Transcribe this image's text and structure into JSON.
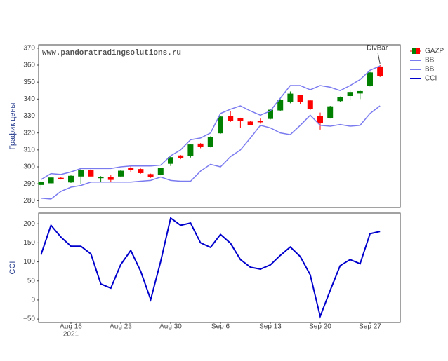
{
  "chart_data": [
    {
      "type": "candlestick",
      "watermark": "www.pandoratradingsolutions.ru",
      "y_label": "График цены",
      "annotation": {
        "text": "DivBar",
        "x": "2021-09-28"
      },
      "x": [
        "2021-08-11",
        "2021-08-12",
        "2021-08-13",
        "2021-08-16",
        "2021-08-17",
        "2021-08-18",
        "2021-08-19",
        "2021-08-20",
        "2021-08-23",
        "2021-08-24",
        "2021-08-25",
        "2021-08-26",
        "2021-08-27",
        "2021-08-30",
        "2021-08-31",
        "2021-09-01",
        "2021-09-02",
        "2021-09-03",
        "2021-09-06",
        "2021-09-07",
        "2021-09-08",
        "2021-09-09",
        "2021-09-10",
        "2021-09-13",
        "2021-09-14",
        "2021-09-15",
        "2021-09-16",
        "2021-09-17",
        "2021-09-20",
        "2021-09-21",
        "2021-09-22",
        "2021-09-23",
        "2021-09-24",
        "2021-09-27",
        "2021-09-28"
      ],
      "ylim": [
        276,
        372
      ],
      "yticks": [
        280,
        290,
        300,
        310,
        320,
        330,
        340,
        350,
        360,
        370
      ],
      "grid": false,
      "legend": "top-right",
      "series": [
        {
          "name": "GAZP",
          "type": "candlestick",
          "increasing_color": "#008000",
          "decreasing_color": "#ff0000",
          "open": [
            289.5,
            290.5,
            293.3,
            291,
            294.5,
            298,
            293.5,
            294,
            294.5,
            299,
            298.5,
            295.5,
            295.5,
            302,
            306.5,
            306.5,
            313.5,
            312,
            320,
            330,
            328.5,
            326.5,
            327,
            328.5,
            333.5,
            338.5,
            342,
            339,
            330,
            329,
            339,
            342,
            343.5,
            348,
            359
          ],
          "high": [
            291.5,
            294,
            294,
            295,
            299,
            299.5,
            294.5,
            295,
            298,
            300.5,
            299,
            296,
            299.5,
            306,
            307,
            313.5,
            314,
            318,
            330,
            333,
            329,
            327,
            328.5,
            334,
            340,
            344.5,
            342.5,
            339.5,
            332,
            336,
            341.5,
            345,
            345,
            356,
            360
          ],
          "low": [
            287,
            290,
            292.5,
            290.5,
            290,
            294,
            291,
            291,
            294,
            297,
            296,
            293.5,
            295,
            300.5,
            304.5,
            305.5,
            311,
            311.5,
            319.5,
            326.5,
            323,
            324.5,
            325.5,
            328,
            333,
            337.5,
            337,
            333.5,
            322,
            328.5,
            338.5,
            339.5,
            340,
            347.5,
            353
          ],
          "close": [
            291,
            293.5,
            293,
            294.5,
            298,
            294.5,
            294,
            292.5,
            297.5,
            298.5,
            296.5,
            294,
            299,
            305.5,
            305.5,
            313,
            312,
            317.5,
            329.5,
            327.5,
            327.5,
            325,
            326.5,
            333.5,
            339.5,
            343,
            338.5,
            334.5,
            326,
            335.5,
            341,
            344,
            344.5,
            355.5,
            354
          ]
        },
        {
          "name": "BB",
          "type": "line",
          "color": "#7b7bf0",
          "values": [
            292.5,
            296,
            295.5,
            297,
            299,
            299,
            299,
            299,
            300,
            300.5,
            300.5,
            300.5,
            301,
            306.5,
            310,
            316,
            317,
            320,
            331.5,
            334,
            336,
            333,
            330.5,
            333,
            340.5,
            348,
            348,
            345.5,
            348,
            347,
            345,
            348,
            351.5,
            357,
            359.5
          ]
        },
        {
          "name": "BB",
          "type": "line",
          "color": "#7b7bf0",
          "values": [
            281.5,
            281,
            285.5,
            288,
            289,
            291,
            291,
            291,
            291,
            291,
            291.5,
            292,
            294,
            292,
            291.5,
            291.5,
            297.5,
            301.5,
            300,
            306,
            310,
            317,
            324.5,
            323,
            320,
            319,
            324.5,
            330.5,
            324.5,
            324,
            325,
            324,
            324.5,
            331.5,
            336
          ]
        }
      ]
    },
    {
      "type": "line",
      "y_label": "CCI",
      "x": [
        "2021-08-11",
        "2021-08-12",
        "2021-08-13",
        "2021-08-16",
        "2021-08-17",
        "2021-08-18",
        "2021-08-19",
        "2021-08-20",
        "2021-08-23",
        "2021-08-24",
        "2021-08-25",
        "2021-08-26",
        "2021-08-27",
        "2021-08-30",
        "2021-08-31",
        "2021-09-01",
        "2021-09-02",
        "2021-09-03",
        "2021-09-06",
        "2021-09-07",
        "2021-09-08",
        "2021-09-09",
        "2021-09-10",
        "2021-09-13",
        "2021-09-14",
        "2021-09-15",
        "2021-09-16",
        "2021-09-17",
        "2021-09-20",
        "2021-09-21",
        "2021-09-22",
        "2021-09-23",
        "2021-09-24",
        "2021-09-27",
        "2021-09-28"
      ],
      "xticks": [
        {
          "value": "2021-08-16",
          "label": "Aug 16"
        },
        {
          "value": "2021-08-23",
          "label": "Aug 23"
        },
        {
          "value": "2021-08-30",
          "label": "Aug 30"
        },
        {
          "value": "2021-09-06",
          "label": "Sep 6"
        },
        {
          "value": "2021-09-13",
          "label": "Sep 13"
        },
        {
          "value": "2021-09-20",
          "label": "Sep 20"
        },
        {
          "value": "2021-09-27",
          "label": "Sep 27"
        }
      ],
      "xtick_year": "2021",
      "ylim": [
        -59,
        228
      ],
      "yticks": [
        {
          "value": -50,
          "label": "−50"
        },
        0,
        50,
        100,
        150,
        200
      ],
      "grid": false,
      "series": [
        {
          "name": "CCI",
          "type": "line",
          "color": "#0000cd",
          "values": [
            119,
            196,
            165,
            141,
            141,
            121,
            42,
            31,
            93,
            130,
            75,
            1,
            101,
            215,
            196,
            202,
            150,
            138,
            172,
            149,
            106,
            86,
            81,
            92,
            117,
            139,
            114,
            66,
            -43,
            25,
            90,
            106,
            95,
            174,
            180
          ]
        }
      ]
    }
  ]
}
